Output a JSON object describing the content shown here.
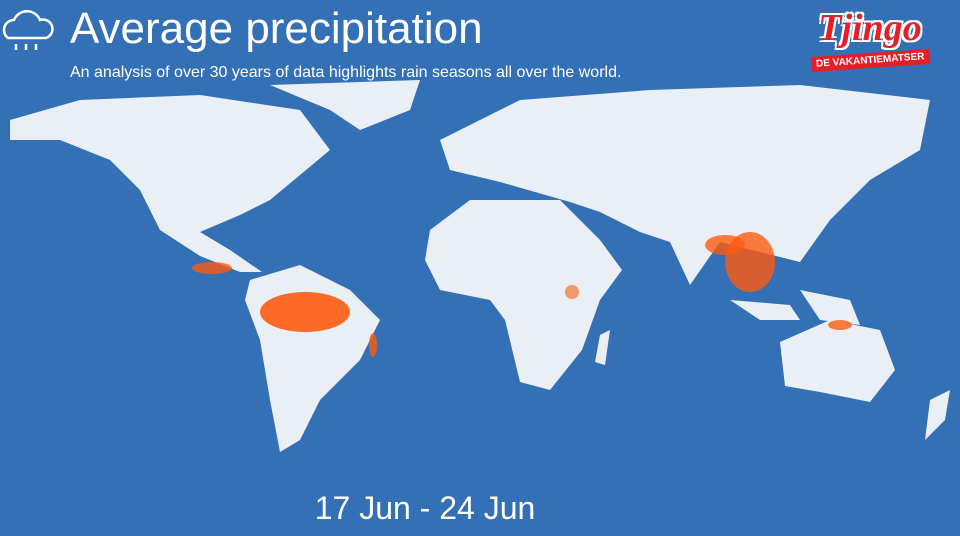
{
  "header": {
    "title": "Average precipitation",
    "subtitle": "An analysis of over 30 years of data highlights rain seasons all over the world."
  },
  "logo": {
    "name": "Tjingo",
    "tagline": "DE VAKANTIEMATSER"
  },
  "date_range": "17 Jun - 24 Jun"
}
